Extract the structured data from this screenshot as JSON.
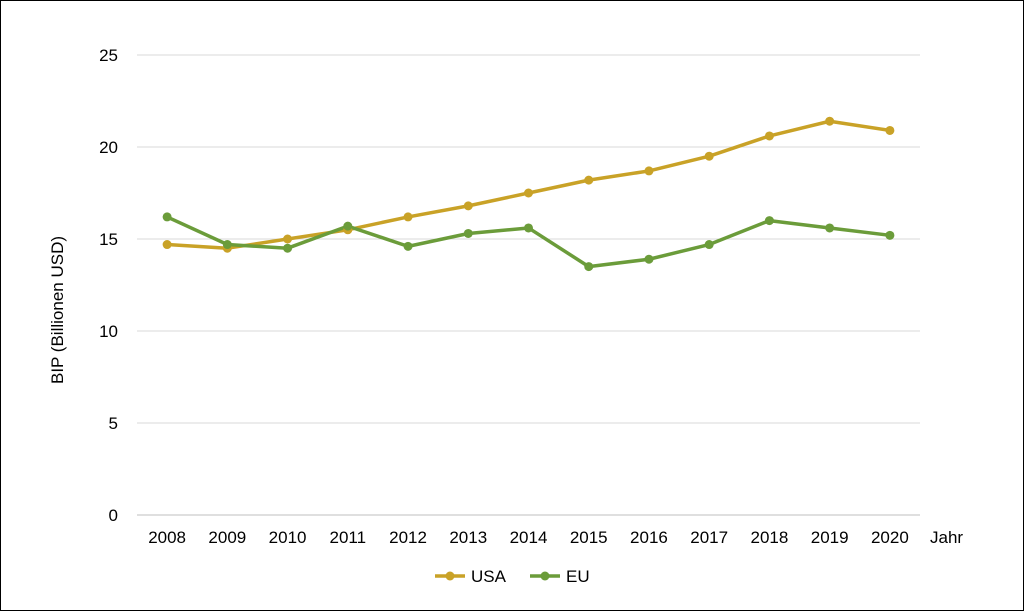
{
  "chart_data": {
    "type": "line",
    "title": "",
    "xlabel": "Jahr",
    "ylabel": "BIP (Billionen USD)",
    "categories": [
      "2008",
      "2009",
      "2010",
      "2011",
      "2012",
      "2013",
      "2014",
      "2015",
      "2016",
      "2017",
      "2018",
      "2019",
      "2020"
    ],
    "ylim": [
      0,
      25
    ],
    "yticks": [
      "0",
      "5",
      "10",
      "15",
      "20",
      "25"
    ],
    "grid": true,
    "legend_position": "bottom",
    "series": [
      {
        "name": "USA",
        "color": "#C9A227",
        "values": [
          14.7,
          14.5,
          15.0,
          15.5,
          16.2,
          16.8,
          17.5,
          18.2,
          18.7,
          19.5,
          20.6,
          21.4,
          20.9
        ]
      },
      {
        "name": "EU",
        "color": "#6B9C3A",
        "values": [
          16.2,
          14.7,
          14.5,
          15.7,
          14.6,
          15.3,
          15.6,
          13.5,
          13.9,
          14.7,
          16.0,
          15.6,
          15.2
        ]
      }
    ]
  }
}
